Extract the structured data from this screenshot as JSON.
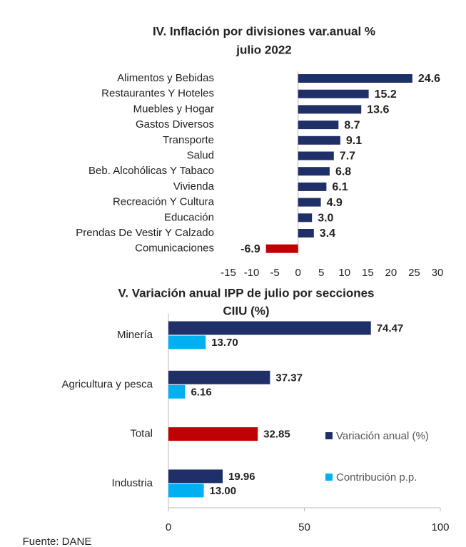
{
  "chart_data": [
    {
      "type": "barh",
      "title": [
        "IV. Inflación por divisiones var.anual %",
        "julio 2022"
      ],
      "categories": [
        "Alimentos y Bebidas",
        "Restaurantes Y Hoteles",
        "Muebles y Hogar",
        "Gastos Diversos",
        "Transporte",
        "Salud",
        "Beb. Alcohólicas Y Tabaco",
        "Vivienda",
        "Recreación Y Cultura",
        "Educación",
        "Prendas De Vestir Y Calzado",
        "Comunicaciones"
      ],
      "series": [
        {
          "values": [
            24.6,
            15.2,
            13.6,
            8.7,
            9.1,
            7.7,
            6.8,
            6.1,
            4.9,
            3.0,
            3.4,
            -6.9
          ],
          "value_labels": [
            "24.6",
            "15.2",
            "13.6",
            "8.7",
            "9.1",
            "7.7",
            "6.8",
            "6.1",
            "4.9",
            "3.0",
            "3.4",
            "-6.9"
          ],
          "colors": [
            "#1f3068",
            "#1f3068",
            "#1f3068",
            "#1f3068",
            "#1f3068",
            "#1f3068",
            "#1f3068",
            "#1f3068",
            "#1f3068",
            "#1f3068",
            "#1f3068",
            "#c00000"
          ]
        }
      ],
      "xlim": [
        -15,
        30
      ],
      "xticks": [
        -15,
        -10,
        -5,
        0,
        5,
        10,
        15,
        20,
        25,
        30
      ]
    },
    {
      "type": "barh",
      "title": [
        "V. Variación anual IPP de julio por secciones",
        "CIIU (%)"
      ],
      "categories": [
        "Minería",
        "Agricultura y pesca",
        "Total",
        "Industria"
      ],
      "series": [
        {
          "name": "Variación anual (%)",
          "color": "#1f3068",
          "values": [
            74.47,
            37.37,
            32.85,
            19.96
          ],
          "value_labels": [
            "74.47",
            "37.37",
            "32.85",
            "19.96"
          ],
          "colors": [
            "#1f3068",
            "#1f3068",
            "#c00000",
            "#1f3068"
          ]
        },
        {
          "name": "Contribución p.p.",
          "color": "#00b0f0",
          "values": [
            13.7,
            6.16,
            null,
            13.0
          ],
          "value_labels": [
            "13.70",
            "6.16",
            null,
            "13.00"
          ]
        }
      ],
      "xlim": [
        0,
        100
      ],
      "xticks": [
        0,
        50,
        100
      ],
      "legend": "right"
    }
  ],
  "source": "Fuente: DANE"
}
